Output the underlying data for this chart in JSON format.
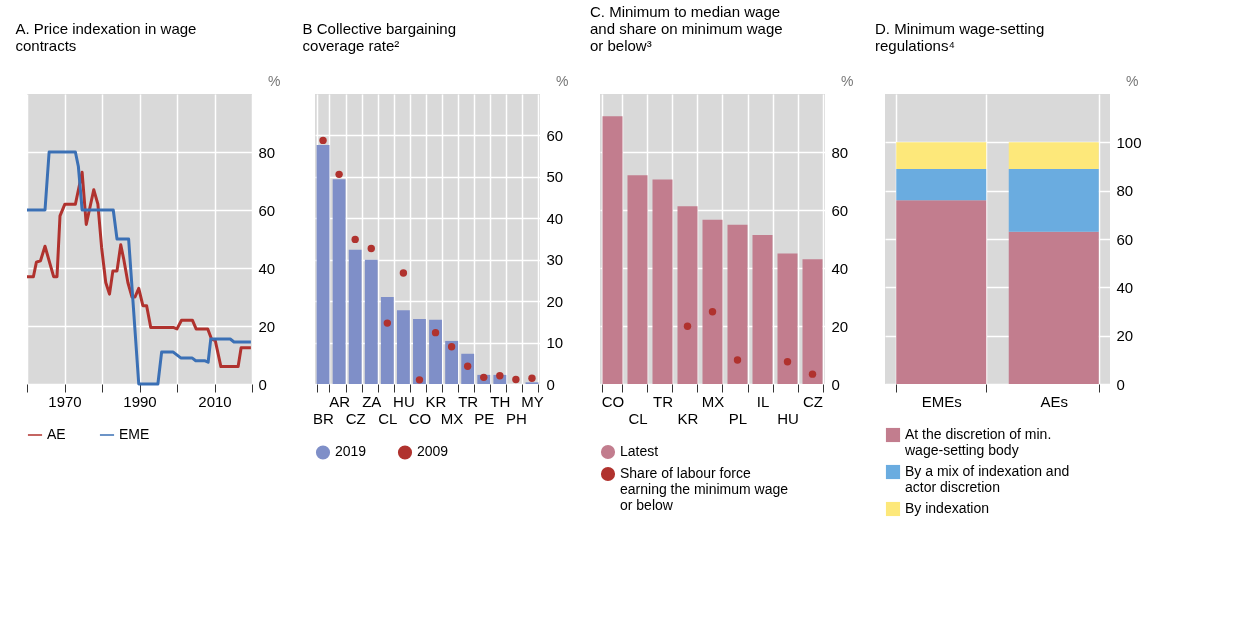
{
  "chart_data": [
    {
      "type": "line",
      "title": "A. Price indexation in wage contracts",
      "ylabel": "%",
      "xlim": [
        1960,
        2020
      ],
      "xticks": [
        {
          "value": 1960,
          "label": null
        },
        1970,
        {
          "value": 1980,
          "label": null
        },
        1990,
        {
          "value": 2000,
          "label": null
        },
        2010,
        {
          "value": 2020,
          "label": null
        }
      ],
      "ylim": [
        0,
        100
      ],
      "yticks": [
        0,
        20,
        40,
        60,
        80
      ],
      "grid": true,
      "legend": "bottom",
      "series": [
        {
          "name": "AE",
          "color": "#b0322e",
          "x": [
            1960,
            1961.7,
            1962.5,
            1963.6,
            1964.8,
            1967.1,
            1968,
            1968.8,
            1970.1,
            1972.9,
            1974.7,
            1975.8,
            1977.8,
            1978.9,
            1979.9,
            1981,
            1982,
            1982.9,
            1984,
            1985,
            1985.8,
            1986.9,
            1988,
            1988.8,
            1989.8,
            1990.9,
            1991.9,
            1993,
            1999,
            2000,
            2001.2,
            2004.1,
            2005.1,
            2008.2,
            2009.2,
            2010.2,
            2011.7,
            2016.3,
            2017.1,
            2019.7
          ],
          "values": [
            37,
            37,
            42,
            42.5,
            47.5,
            37,
            37,
            58,
            62,
            62,
            73,
            55,
            67,
            62,
            47,
            35,
            31,
            39,
            39,
            48,
            43,
            35,
            30,
            30,
            33,
            27,
            27,
            19.5,
            19.5,
            19,
            22,
            22,
            19,
            19,
            15.5,
            15,
            6,
            6,
            12.5,
            12.5
          ]
        },
        {
          "name": "EME",
          "color": "#3b70b5",
          "x": [
            1960,
            1964.8,
            1965.9,
            1972.9,
            1973.7,
            1974.7,
            1983,
            1984,
            1987.1,
            1989.8,
            1994.9,
            1995.9,
            1999,
            2001,
            2004,
            2005,
            2007.5,
            2008.3,
            2009,
            2014.2,
            2015.2,
            2019.7
          ],
          "values": [
            60,
            60,
            80,
            80,
            75,
            60,
            60,
            50,
            50,
            0,
            0,
            11,
            11,
            9,
            9,
            8,
            8,
            7.5,
            15.5,
            15.5,
            14.5,
            14.5
          ]
        }
      ]
    },
    {
      "type": "bar",
      "title": "B Collective bargaining coverage rate²",
      "ylabel": "%",
      "categories": [
        "BR",
        "AR",
        "CZ",
        "ZA",
        "CL",
        "HU",
        "CO",
        "KR",
        "MX",
        "TR",
        "PE",
        "TH",
        "PH",
        "MY"
      ],
      "ylim": [
        0,
        70
      ],
      "yticks": [
        0,
        10,
        20,
        30,
        40,
        50,
        60
      ],
      "grid": true,
      "legend": "bottom",
      "series": [
        {
          "name": "2019",
          "color": "#7f8fc8",
          "values": [
            57.7,
            49.4,
            32.4,
            30,
            21,
            17.8,
            15.7,
            15.5,
            10.4,
            7.3,
            2.2,
            2.2,
            0,
            0.4
          ]
        },
        {
          "name": "2009",
          "type": "scatter",
          "color": "#b0322e",
          "values": [
            58.8,
            50.6,
            34.9,
            32.7,
            14.7,
            26.8,
            1,
            12.4,
            9,
            4.3,
            1.6,
            2,
            1.1,
            1.4
          ]
        }
      ]
    },
    {
      "type": "bar",
      "title": "C. Minimum to median wage and share on minimum wage or below³",
      "ylabel": "%",
      "categories": [
        "CO",
        "CL",
        "TR",
        "KR",
        "MX",
        "PL",
        "IL",
        "HU",
        "CZ"
      ],
      "ylim": [
        0,
        100
      ],
      "yticks": [
        0,
        20,
        40,
        60,
        80
      ],
      "grid": true,
      "legend": "bottom",
      "series": [
        {
          "name": "Latest",
          "color": "#c27d8e",
          "values": [
            92.3,
            72,
            70.5,
            61.3,
            56.6,
            54.9,
            51.4,
            45,
            43
          ]
        },
        {
          "name": "Share of labour force earning the minimum wage or below",
          "type": "scatter",
          "color": "#b0322e",
          "values": [
            null,
            null,
            null,
            19.9,
            24.9,
            8.3,
            null,
            7.7,
            3.4
          ]
        }
      ]
    },
    {
      "type": "bar",
      "stacked": true,
      "title": "D. Minimum wage-setting regulations⁴",
      "ylabel": "%",
      "categories": [
        "EMEs",
        "AEs"
      ],
      "ylim": [
        0,
        120
      ],
      "yticks": [
        0,
        20,
        40,
        60,
        80,
        100
      ],
      "grid": true,
      "legend": "bottom",
      "series": [
        {
          "name": "At the discretion of min. wage-setting body",
          "color": "#c27d8e",
          "values": [
            76,
            63
          ]
        },
        {
          "name": "By a mix of indexation and actor discretion",
          "color": "#6aace0",
          "values": [
            13,
            26
          ]
        },
        {
          "name": "By indexation",
          "color": "#fde87a",
          "values": [
            11,
            11
          ]
        }
      ]
    }
  ]
}
